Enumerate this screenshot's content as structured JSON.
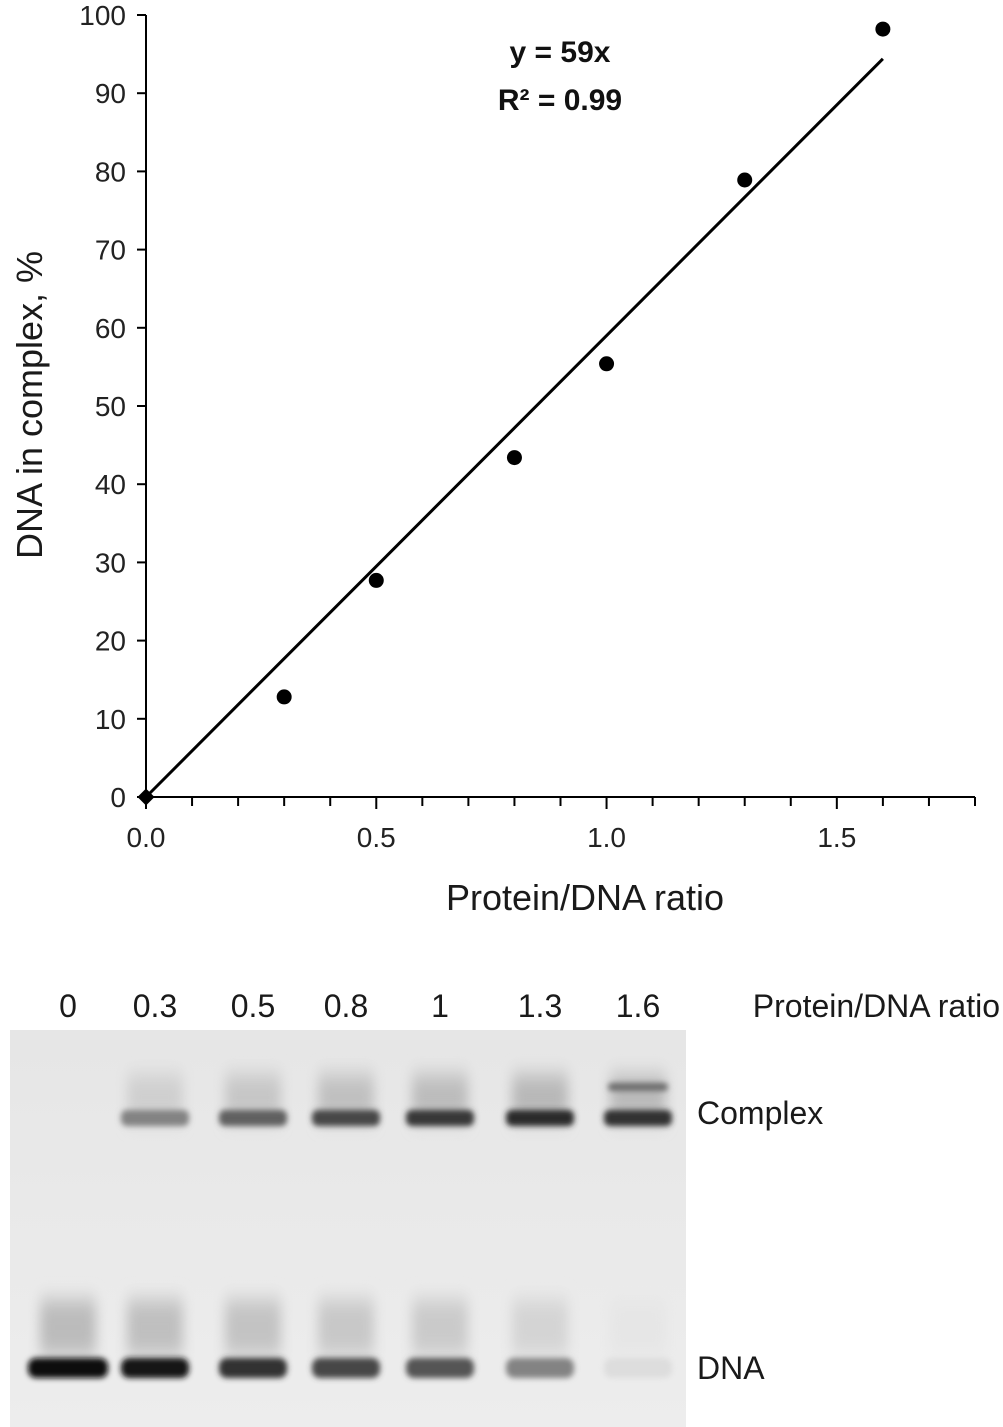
{
  "chart_data": [
    {
      "type": "scatter",
      "title": "",
      "xlabel": "Protein/DNA ratio",
      "ylabel": "DNA in complex, %",
      "xlim": [
        0,
        1.8
      ],
      "ylim": [
        0,
        100
      ],
      "xticks": [
        "0.0",
        "0.5",
        "1.0",
        "1.5"
      ],
      "xtick_values": [
        0,
        0.5,
        1.0,
        1.5
      ],
      "yticks": [
        "0",
        "10",
        "20",
        "30",
        "40",
        "50",
        "60",
        "70",
        "80",
        "90",
        "100"
      ],
      "ytick_values": [
        0,
        10,
        20,
        30,
        40,
        50,
        60,
        70,
        80,
        90,
        100
      ],
      "grid": false,
      "series": [
        {
          "x": [
            0,
            0.3,
            0.5,
            0.8,
            1.0,
            1.3,
            1.6
          ],
          "y": [
            0,
            12.8,
            27.7,
            43.4,
            55.4,
            78.9,
            98.2
          ],
          "color": "#000000"
        }
      ],
      "trendline": {
        "slope": 59,
        "x_range": [
          0,
          1.6
        ],
        "equation": "y = 59x",
        "r_squared": "R² = 0.99"
      }
    }
  ],
  "gel": {
    "header_values": [
      "0",
      "0.3",
      "0.5",
      "0.8",
      "1",
      "1.3",
      "1.6"
    ],
    "header_label": "Protein/DNA ratio",
    "band_labels": {
      "complex": "Complex",
      "dna": "DNA"
    },
    "complex_intensity": [
      0,
      0.45,
      0.6,
      0.72,
      0.78,
      0.85,
      0.82
    ],
    "dna_intensity": [
      1.0,
      0.92,
      0.82,
      0.72,
      0.66,
      0.45,
      0.05
    ]
  }
}
